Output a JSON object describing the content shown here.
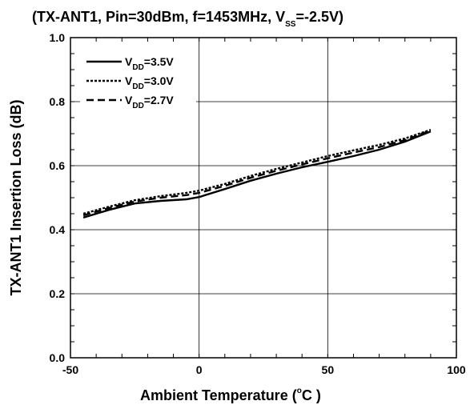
{
  "chart_data": {
    "type": "line",
    "title_parts": {
      "main": "(TX-ANT1, Pin=30dBm, f=1453MHz, V",
      "sub": "SS",
      "tail": "=-2.5V)"
    },
    "xlabel_parts": {
      "main": "Ambient Temperature (",
      "sup": "o",
      "tail": "C )"
    },
    "ylabel": "TX-ANT1 Insertion Loss (dB)",
    "xlim": [
      -50,
      100
    ],
    "ylim": [
      0.0,
      1.0
    ],
    "x_ticks": [
      -50,
      0,
      50,
      100
    ],
    "x_tick_labels": [
      "-50",
      "0",
      "50",
      "100"
    ],
    "y_ticks": [
      0.0,
      0.2,
      0.4,
      0.6,
      0.8,
      1.0
    ],
    "y_tick_labels": [
      "0.0",
      "0.2",
      "0.4",
      "0.6",
      "0.8",
      "1.0"
    ],
    "grid": true,
    "legend_position": "top-left",
    "series": [
      {
        "name_main": "V",
        "name_sub": "DD",
        "name_tail": "=3.5V",
        "style": "solid",
        "x": [
          -45,
          -35,
          -25,
          -15,
          -5,
          0,
          10,
          20,
          30,
          40,
          50,
          60,
          70,
          80,
          90
        ],
        "y": [
          0.438,
          0.462,
          0.482,
          0.49,
          0.495,
          0.502,
          0.527,
          0.553,
          0.575,
          0.595,
          0.612,
          0.63,
          0.65,
          0.675,
          0.707
        ]
      },
      {
        "name_main": "V",
        "name_sub": "DD",
        "name_tail": "=3.0V",
        "style": "dotted",
        "x": [
          -45,
          -35,
          -25,
          -15,
          -5,
          0,
          10,
          20,
          30,
          40,
          50,
          60,
          70,
          80,
          90
        ],
        "y": [
          0.45,
          0.472,
          0.492,
          0.505,
          0.515,
          0.522,
          0.543,
          0.568,
          0.59,
          0.61,
          0.63,
          0.648,
          0.665,
          0.685,
          0.712
        ]
      },
      {
        "name_main": "V",
        "name_sub": "DD",
        "name_tail": "=2.7V",
        "style": "dashed",
        "x": [
          -45,
          -35,
          -25,
          -15,
          -5,
          0,
          10,
          20,
          30,
          40,
          50,
          60,
          70,
          80,
          90
        ],
        "y": [
          0.445,
          0.468,
          0.488,
          0.5,
          0.508,
          0.515,
          0.537,
          0.562,
          0.584,
          0.604,
          0.623,
          0.641,
          0.658,
          0.68,
          0.71
        ]
      }
    ]
  }
}
